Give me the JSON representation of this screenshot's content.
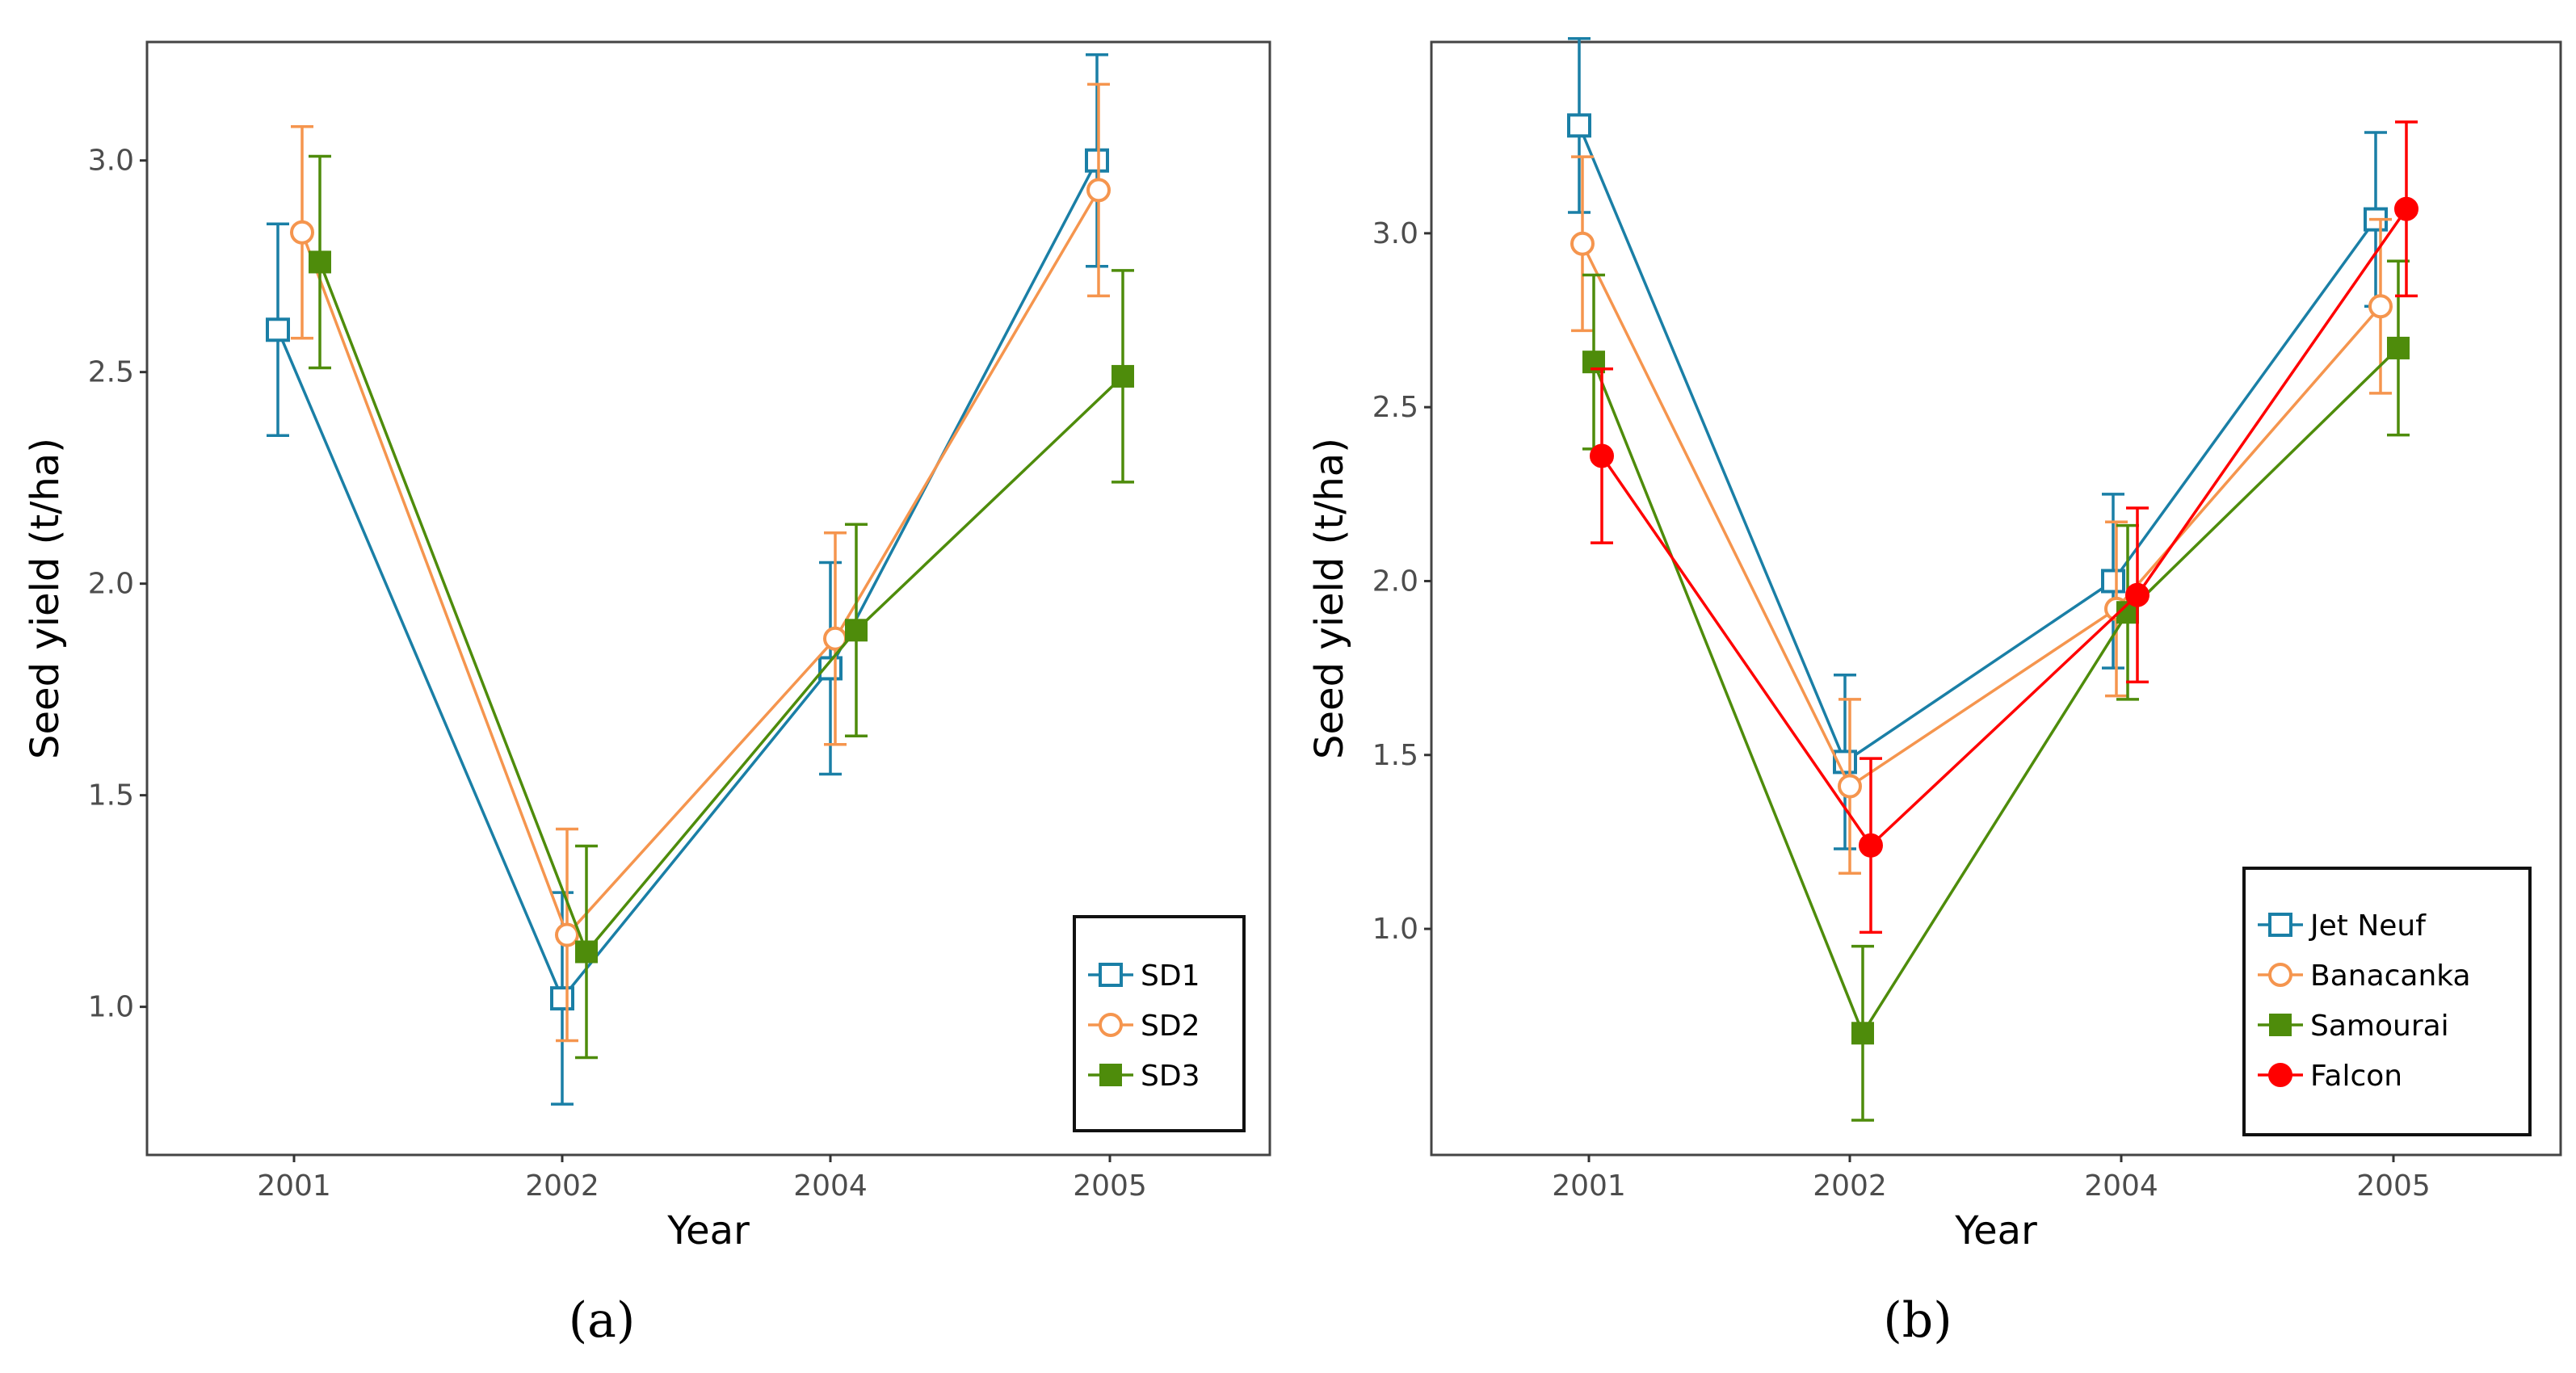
{
  "chart_data": [
    {
      "type": "line",
      "panel_label": "a",
      "panel_label_text": "(a)",
      "xlabel": "Year",
      "ylabel": "Seed yield (t/ha)",
      "categories": [
        "2001",
        "2002",
        "2004",
        "2005"
      ],
      "y_ticks": [
        "1.0",
        "1.5",
        "2.0",
        "2.5",
        "3.0"
      ],
      "ylim": [
        0.65,
        3.28
      ],
      "grid": false,
      "legend_position": "bottom-right",
      "series": [
        {
          "name": "SD1",
          "color": "#1a7fa6",
          "marker": "open-square",
          "values": [
            2.6,
            1.02,
            1.8,
            3.0
          ],
          "err": [
            0.25,
            0.25,
            0.25,
            0.25
          ]
        },
        {
          "name": "SD2",
          "color": "#f5954e",
          "marker": "open-circle",
          "values": [
            2.83,
            1.17,
            1.87,
            2.93
          ],
          "err": [
            0.25,
            0.25,
            0.25,
            0.25
          ]
        },
        {
          "name": "SD3",
          "color": "#4e8c0b",
          "marker": "filled-square",
          "values": [
            2.76,
            1.13,
            1.89,
            2.49
          ],
          "err": [
            0.25,
            0.25,
            0.25,
            0.25
          ]
        }
      ]
    },
    {
      "type": "line",
      "panel_label": "b",
      "panel_label_text": "(b)",
      "xlabel": "Year",
      "ylabel": "Seed yield (t/ha)",
      "categories": [
        "2001",
        "2002",
        "2004",
        "2005"
      ],
      "y_ticks": [
        "1.0",
        "1.5",
        "2.0",
        "2.5",
        "3.0"
      ],
      "ylim": [
        0.35,
        3.55
      ],
      "grid": false,
      "legend_position": "bottom-right",
      "series": [
        {
          "name": "Jet Neuf",
          "color": "#1a7fa6",
          "marker": "open-square",
          "values": [
            3.31,
            1.48,
            2.0,
            3.04
          ],
          "err": [
            0.25,
            0.25,
            0.25,
            0.25
          ]
        },
        {
          "name": "Banacanka",
          "color": "#f5954e",
          "marker": "open-circle",
          "values": [
            2.97,
            1.41,
            1.92,
            2.79
          ],
          "err": [
            0.25,
            0.25,
            0.25,
            0.25
          ]
        },
        {
          "name": "Samourai",
          "color": "#4e8c0b",
          "marker": "filled-square",
          "values": [
            2.63,
            0.7,
            1.91,
            2.67
          ],
          "err": [
            0.25,
            0.25,
            0.25,
            0.25
          ]
        },
        {
          "name": "Falcon",
          "color": "#ff0000",
          "marker": "filled-circle",
          "values": [
            2.36,
            1.24,
            1.96,
            3.07
          ],
          "err": [
            0.25,
            0.25,
            0.25,
            0.25
          ]
        }
      ]
    }
  ]
}
